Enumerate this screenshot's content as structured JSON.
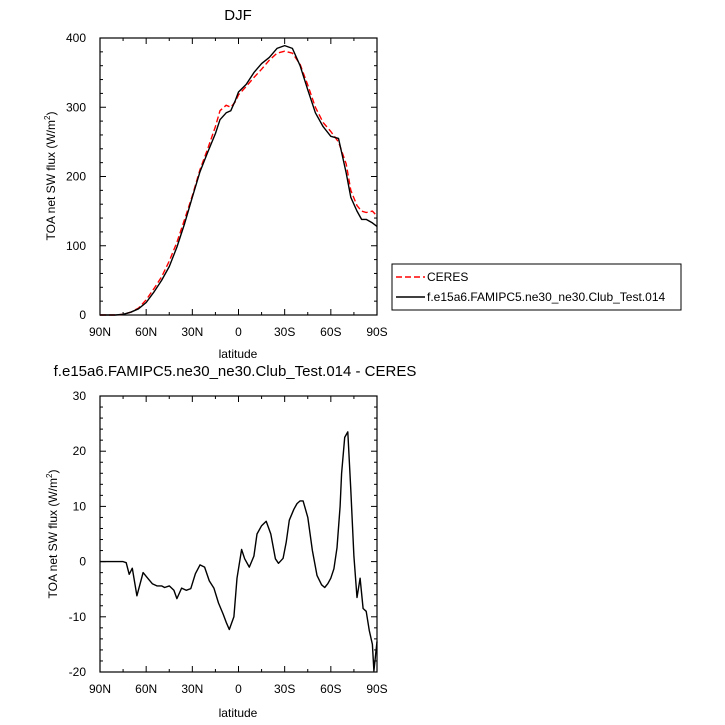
{
  "chart_data": [
    {
      "type": "line",
      "title": "DJF",
      "xlabel": "latitude",
      "ylabel": "TOA net SW flux (W/m",
      "ylabel_sup": "2",
      "ylabel_close": ")",
      "xlim": [
        90,
        -90
      ],
      "ylim": [
        0,
        400
      ],
      "x_ticks": [
        90,
        60,
        30,
        0,
        -30,
        -60,
        -90
      ],
      "x_tick_labels": [
        "90N",
        "60N",
        "30N",
        "0",
        "30S",
        "60S",
        "90S"
      ],
      "y_ticks": [
        0,
        100,
        200,
        300,
        400
      ],
      "y_tick_labels": [
        "0",
        "100",
        "200",
        "300",
        "400"
      ],
      "legend_position": "right",
      "series": [
        {
          "name": "CERES",
          "color": "#ff0000",
          "dash": "dashed",
          "x": [
            90,
            80,
            75,
            70,
            65,
            60,
            55,
            50,
            45,
            40,
            35,
            30,
            25,
            20,
            15,
            12,
            8,
            5,
            2,
            0,
            -5,
            -10,
            -15,
            -20,
            -25,
            -30,
            -35,
            -40,
            -45,
            -50,
            -55,
            -60,
            -65,
            -70,
            -73,
            -77,
            -80,
            -83,
            -87,
            -90
          ],
          "y": [
            0,
            0,
            1,
            4,
            10,
            22,
            38,
            55,
            78,
            105,
            138,
            172,
            210,
            240,
            272,
            295,
            303,
            300,
            308,
            318,
            330,
            343,
            355,
            368,
            378,
            381,
            378,
            362,
            332,
            300,
            278,
            265,
            250,
            218,
            180,
            158,
            150,
            148,
            150,
            143
          ]
        },
        {
          "name": "f.e15a6.FAMIPC5.ne30_ne30.Club_Test.014",
          "color": "#000000",
          "dash": "solid",
          "x": [
            90,
            80,
            75,
            70,
            65,
            60,
            55,
            50,
            45,
            40,
            35,
            30,
            25,
            20,
            15,
            12,
            8,
            5,
            2,
            0,
            -5,
            -10,
            -15,
            -20,
            -25,
            -30,
            -35,
            -40,
            -45,
            -50,
            -55,
            -60,
            -65,
            -70,
            -73,
            -77,
            -80,
            -83,
            -87,
            -90
          ],
          "y": [
            0,
            0,
            1,
            4,
            9,
            18,
            33,
            50,
            70,
            98,
            132,
            170,
            207,
            235,
            262,
            282,
            292,
            295,
            310,
            322,
            333,
            350,
            363,
            372,
            385,
            389,
            385,
            360,
            325,
            292,
            272,
            258,
            255,
            205,
            170,
            150,
            138,
            138,
            133,
            128
          ]
        }
      ]
    },
    {
      "type": "line",
      "title": "f.e15a6.FAMIPC5.ne30_ne30.Club_Test.014 - CERES",
      "xlabel": "latitude",
      "ylabel": "TOA net SW flux (W/m",
      "ylabel_sup": "2",
      "ylabel_close": ")",
      "xlim": [
        90,
        -90
      ],
      "ylim": [
        -20,
        30
      ],
      "x_ticks": [
        90,
        60,
        30,
        0,
        -30,
        -60,
        -90
      ],
      "x_tick_labels": [
        "90N",
        "60N",
        "30N",
        "0",
        "30S",
        "60S",
        "90S"
      ],
      "y_ticks": [
        -20,
        -10,
        0,
        10,
        20,
        30
      ],
      "y_tick_labels": [
        "-20",
        "-10",
        "0",
        "10",
        "20",
        "30"
      ],
      "series": [
        {
          "color": "#000000",
          "dash": "solid",
          "x": [
            90,
            84,
            78,
            75,
            73,
            71,
            69,
            66,
            62,
            59,
            56,
            53,
            50,
            48,
            45,
            42,
            40,
            37,
            34,
            31,
            28,
            25,
            22,
            19,
            16,
            13,
            10,
            8,
            6,
            3,
            1,
            -2,
            -4,
            -7,
            -10,
            -12,
            -15,
            -18,
            -21,
            -24,
            -26,
            -29,
            -31,
            -33,
            -36,
            -38,
            -40,
            -42,
            -45,
            -48,
            -51,
            -54,
            -56,
            -58,
            -60,
            -62,
            -64,
            -66,
            -67,
            -69,
            -71,
            -73,
            -75,
            -77,
            -79,
            -81,
            -83,
            -85,
            -87,
            -88,
            -90
          ],
          "y": [
            0,
            0,
            0,
            0,
            -0.2,
            -2.3,
            -1.2,
            -6.2,
            -2.0,
            -3.0,
            -4.0,
            -4.4,
            -4.4,
            -4.7,
            -4.4,
            -5.2,
            -6.7,
            -4.8,
            -5.2,
            -4.9,
            -2.2,
            -0.6,
            -1.0,
            -3.5,
            -4.8,
            -7.5,
            -9.5,
            -11.0,
            -12.3,
            -10.0,
            -3.0,
            2.2,
            0.5,
            -1.0,
            1.0,
            5.0,
            6.5,
            7.3,
            5.0,
            0.5,
            -0.3,
            0.6,
            3.5,
            7.5,
            9.5,
            10.5,
            11.0,
            11.0,
            8.0,
            2.0,
            -2.5,
            -4.2,
            -4.7,
            -4.0,
            -3.0,
            -1.3,
            2.5,
            10.0,
            16.0,
            22.5,
            23.5,
            13.0,
            1.0,
            -6.5,
            -3.0,
            -8.5,
            -9.0,
            -12.5,
            -15.0,
            -19.8,
            -14.5
          ]
        }
      ]
    }
  ]
}
